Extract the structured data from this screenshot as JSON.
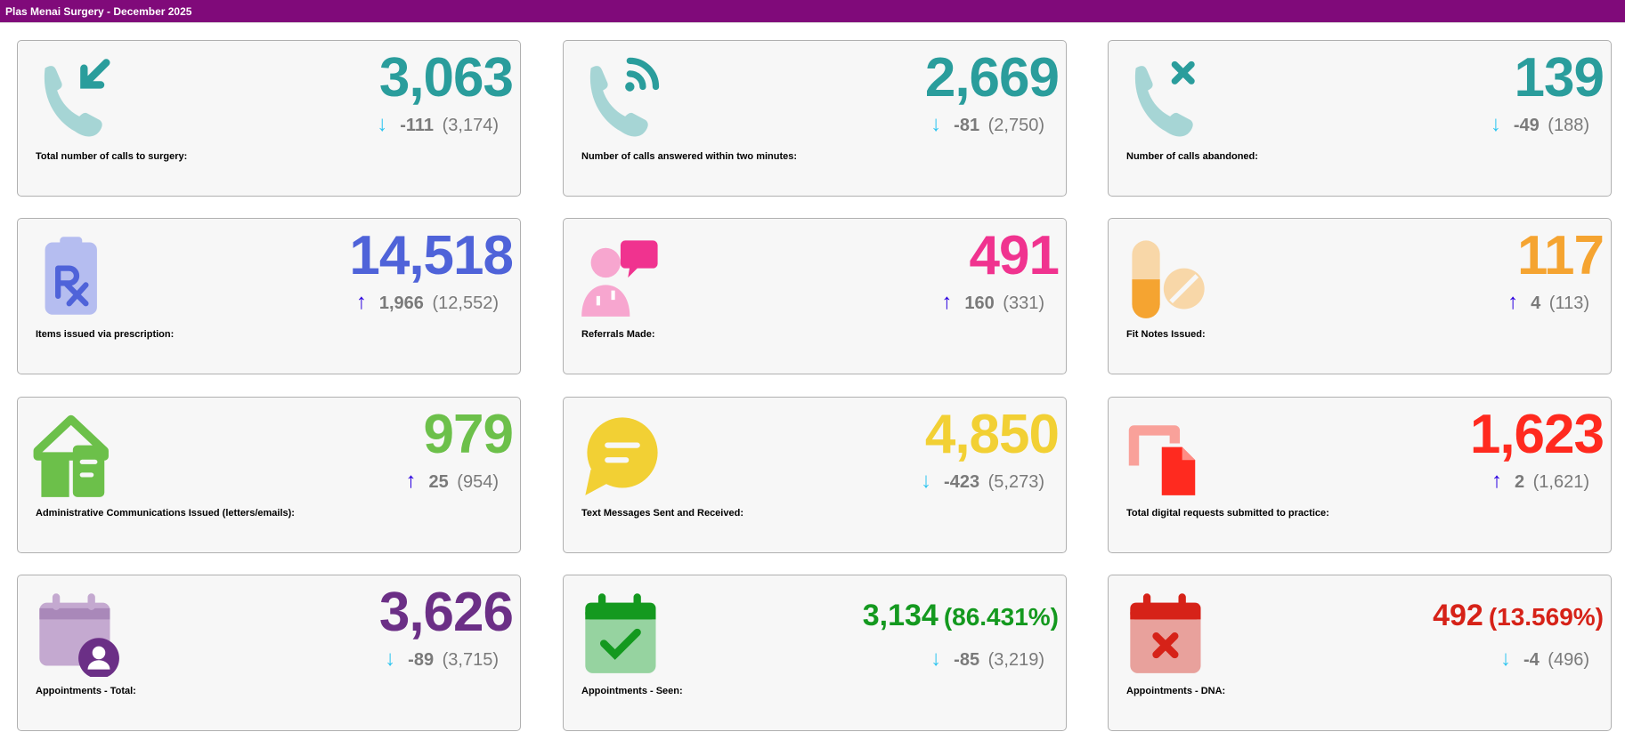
{
  "header": {
    "title": "Plas Menai Surgery - December 2025"
  },
  "arrow_colors": {
    "down": "#2ec5f0",
    "up": "#2b00e0"
  },
  "cards": [
    {
      "label": "Total number of calls to surgery:",
      "value": "3,063",
      "delta": "-111",
      "previous": "(3,174)",
      "direction": "down",
      "color": "#2a9d9c",
      "icon": "phone-incoming-icon"
    },
    {
      "label": "Number of calls answered within two minutes:",
      "value": "2,669",
      "delta": "-81",
      "previous": "(2,750)",
      "direction": "down",
      "color": "#2a9d9c",
      "icon": "phone-answered-icon"
    },
    {
      "label": "Number of calls abandoned:",
      "value": "139",
      "delta": "-49",
      "previous": "(188)",
      "direction": "down",
      "color": "#2a9d9c",
      "icon": "phone-missed-icon"
    },
    {
      "label": "Items issued via prescription:",
      "value": "14,518",
      "delta": "1,966",
      "previous": "(12,552)",
      "direction": "up",
      "color": "#4f63d9",
      "icon": "prescription-icon"
    },
    {
      "label": "Referrals Made:",
      "value": "491",
      "delta": "160",
      "previous": "(331)",
      "direction": "up",
      "color": "#f0338f",
      "icon": "doctor-referral-icon"
    },
    {
      "label": "Fit Notes Issued:",
      "value": "117",
      "delta": "4",
      "previous": "(113)",
      "direction": "up",
      "color": "#f5a431",
      "icon": "pills-icon"
    },
    {
      "label": "Administrative Communications Issued (letters/emails):",
      "value": "979",
      "delta": "25",
      "previous": "(954)",
      "direction": "up",
      "color": "#6cc04a",
      "icon": "house-letter-icon"
    },
    {
      "label": "Text Messages Sent and Received:",
      "value": "4,850",
      "delta": "-423",
      "previous": "(5,273)",
      "direction": "down",
      "color": "#f2d034",
      "icon": "message-bubble-icon"
    },
    {
      "label": "Total digital requests submitted to practice:",
      "value": "1,623",
      "delta": "2",
      "previous": "(1,621)",
      "direction": "up",
      "color": "#ff2a1f",
      "icon": "digital-request-icon"
    },
    {
      "label": "Appointments - Total:",
      "value": "3,626",
      "delta": "-89",
      "previous": "(3,715)",
      "direction": "down",
      "color": "#6b2f86",
      "icon": "calendar-user-icon"
    },
    {
      "label": "Appointments - Seen:",
      "value": "3,134",
      "percent": "(86.431%)",
      "delta": "-85",
      "previous": "(3,219)",
      "direction": "down",
      "color": "#14991f",
      "icon": "calendar-check-icon"
    },
    {
      "label": "Appointments - DNA:",
      "value": "492",
      "percent": "(13.569%)",
      "delta": "-4",
      "previous": "(496)",
      "direction": "down",
      "color": "#d62218",
      "icon": "calendar-x-icon"
    }
  ]
}
